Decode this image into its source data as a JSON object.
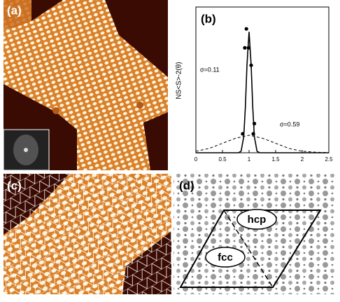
{
  "figure": {
    "panel_labels": [
      "(a)",
      "(b)",
      "(c)",
      "(d)"
    ],
    "diagram_labels": [
      "hcp",
      "fcc"
    ]
  },
  "chart_data": {
    "type": "line",
    "ylabel": "NS<S>-2(θ)",
    "xlim": [
      0,
      2.5
    ],
    "xticks": [
      0,
      0.5,
      1,
      1.5,
      2,
      2.5
    ],
    "ylim": [
      0,
      1
    ],
    "annotations": [
      "σ=0.11",
      "σ=0.59"
    ],
    "series": [
      {
        "color": "#000000",
        "dashed": false,
        "x": [
          0,
          0.7,
          0.8,
          0.85,
          0.9,
          0.93,
          0.96,
          1.0,
          1.04,
          1.07,
          1.1,
          1.15,
          1.2,
          1.3,
          2.5
        ],
        "values": [
          0,
          0,
          0,
          0.01,
          0.11,
          0.31,
          0.6,
          0.83,
          0.6,
          0.31,
          0.11,
          0.01,
          0,
          0,
          0
        ]
      },
      {
        "color": "#000000",
        "dashed": true,
        "x": [
          0,
          0.25,
          0.5,
          0.75,
          1.0,
          1.25,
          1.5,
          1.75,
          2.0,
          2.25,
          2.5
        ],
        "values": [
          0.01,
          0.03,
          0.065,
          0.1,
          0.12,
          0.1,
          0.065,
          0.03,
          0.01,
          0.004,
          0.001
        ]
      }
    ],
    "points": {
      "color": "#000000",
      "x": [
        0.88,
        0.92,
        0.95,
        0.99,
        1.04,
        1.08,
        1.1
      ],
      "values": [
        0.13,
        0.72,
        0.85,
        0.72,
        0.6,
        0.13,
        0.2
      ]
    }
  }
}
